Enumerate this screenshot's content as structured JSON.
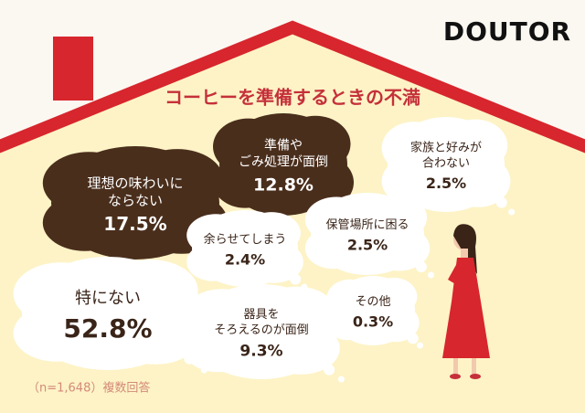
{
  "chart_data": {
    "type": "bubble-cloud",
    "title": "コーヒーを準備するときの不満",
    "brand": "DOUTOR",
    "note": "（n=1,648）複数回答",
    "categories": [
      "理想の味わいに\nならない",
      "準備や\nごみ処理が面倒",
      "家族と好みが\n合わない",
      "余らせてしまう",
      "保管場所に困る",
      "特にない",
      "器具を\nそろえるのが面倒",
      "その他"
    ],
    "values": [
      17.5,
      12.8,
      2.5,
      2.4,
      2.5,
      52.8,
      9.3,
      0.3
    ],
    "value_labels": [
      "17.5%",
      "12.8%",
      "2.5%",
      "2.4%",
      "2.5%",
      "52.8%",
      "9.3%",
      "0.3%"
    ],
    "colors": [
      "#4a2e1c",
      "#4a2e1c",
      "#ffffff",
      "#ffffff",
      "#ffffff",
      "#ffffff",
      "#ffffff",
      "#ffffff"
    ]
  }
}
